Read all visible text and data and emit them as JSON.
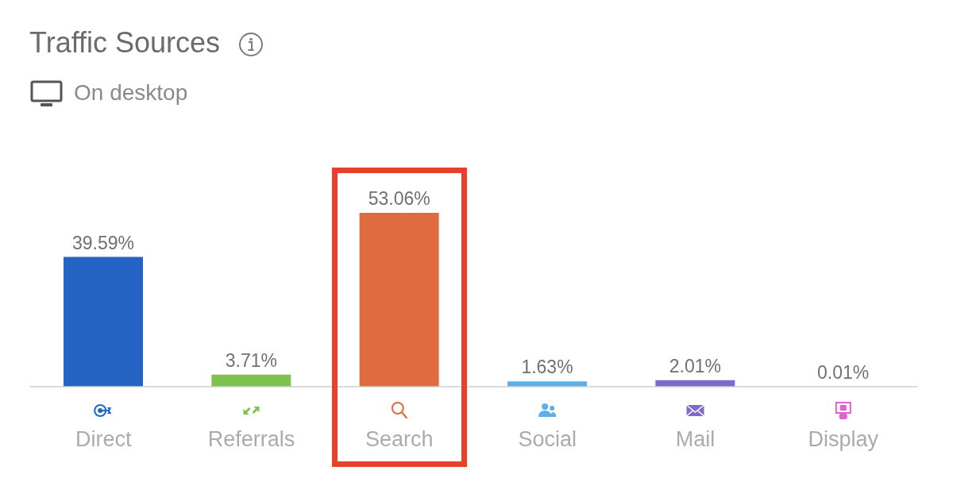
{
  "chart_data": {
    "type": "bar",
    "title": "Traffic Sources",
    "subtitle": "On desktop",
    "categories": [
      "Direct",
      "Referrals",
      "Search",
      "Social",
      "Mail",
      "Display"
    ],
    "values": [
      39.59,
      3.71,
      53.06,
      1.63,
      2.01,
      0.01
    ],
    "colors": [
      "#2563c5",
      "#7dc24a",
      "#e06b3f",
      "#5ab0e8",
      "#7f68cf",
      "#e061cf"
    ],
    "value_labels": [
      "39.59%",
      "3.71%",
      "53.06%",
      "1.63%",
      "2.01%",
      "0.01%"
    ],
    "tick_labels": "x"
  }
}
